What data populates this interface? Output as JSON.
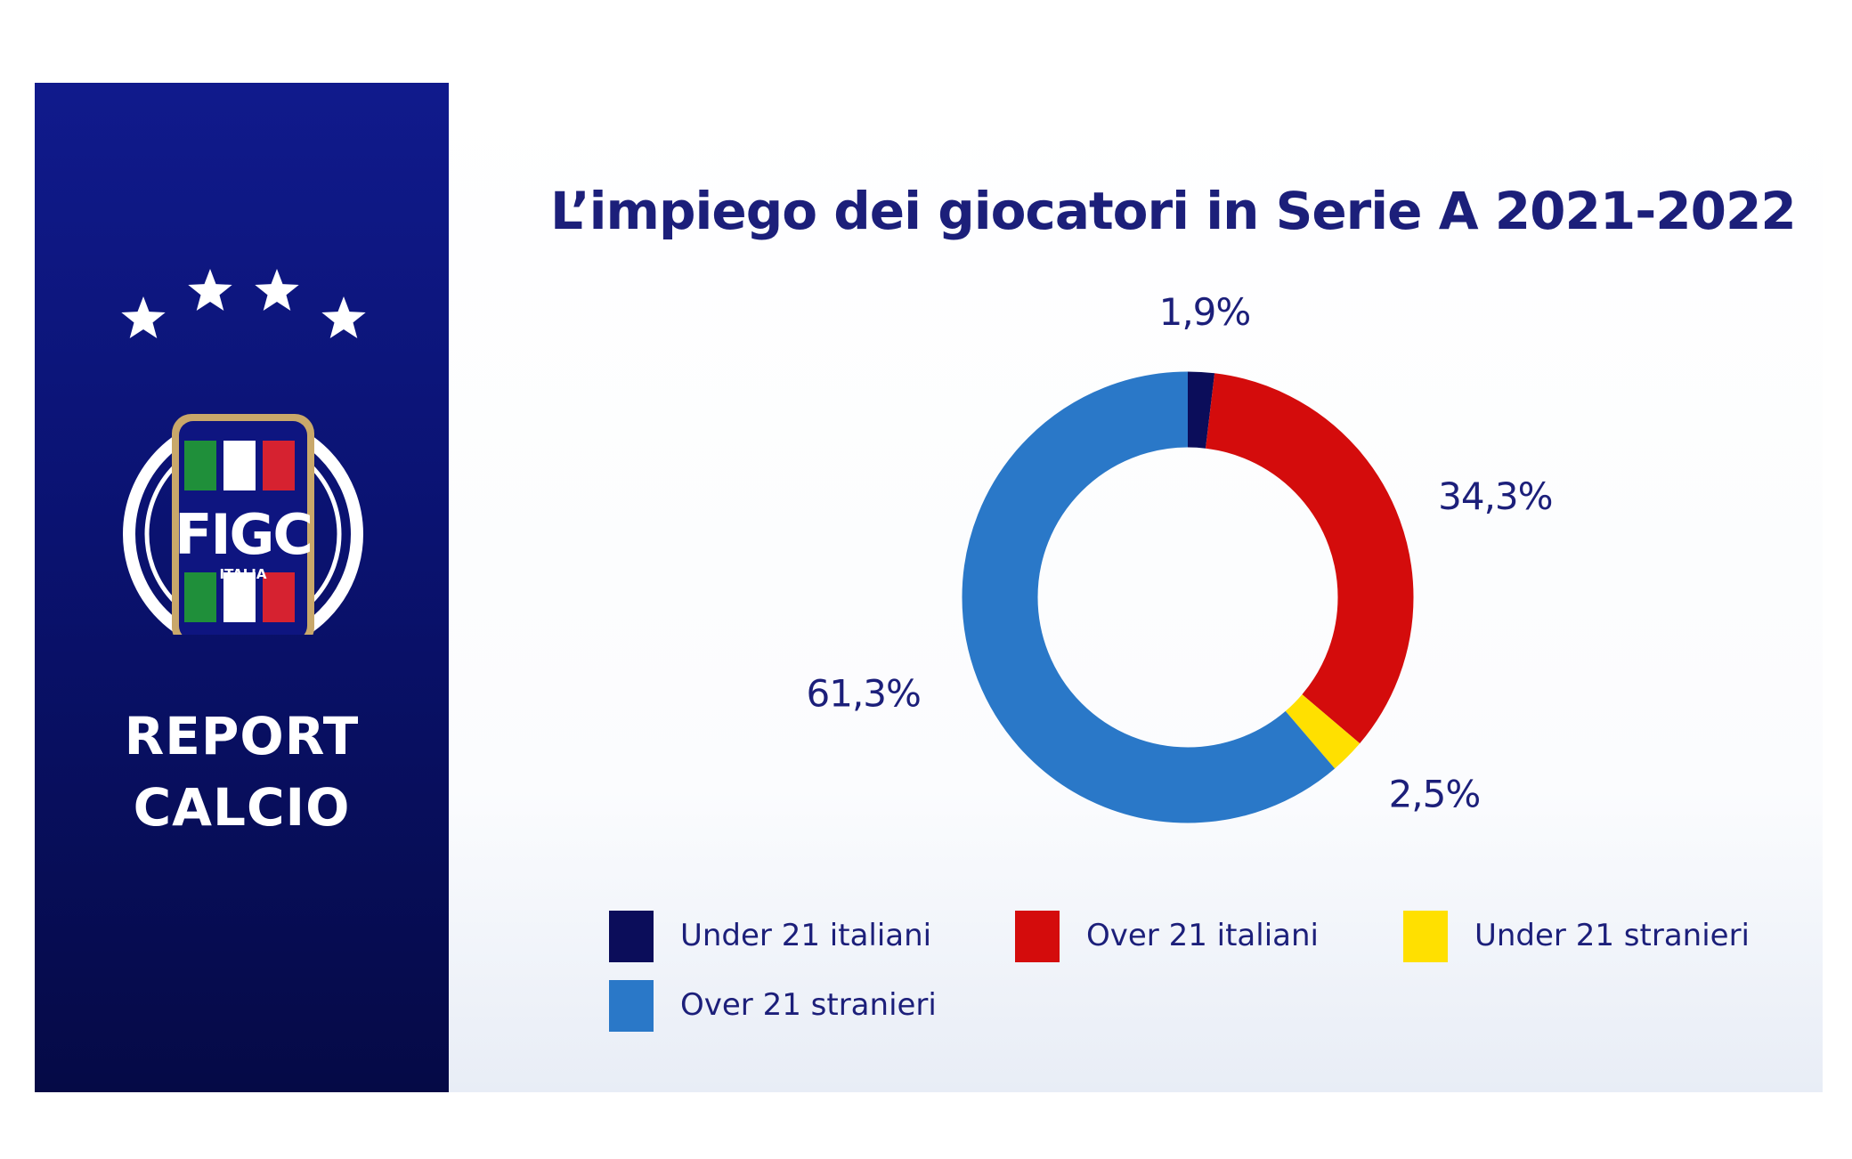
{
  "sidebar": {
    "report_line1": "REPORT",
    "report_line2": "CALCIO",
    "logo": {
      "text": "FIGC",
      "subtext": "ITALIA",
      "stars": 4,
      "colors": {
        "green": "#1f8f3a",
        "white": "#ffffff",
        "red": "#d62230",
        "gold": "#c9a86a"
      }
    }
  },
  "chart_data": {
    "type": "pie",
    "variant": "donut",
    "title": "L’impiego dei giocatori in Serie A 2021-2022",
    "unit": "%",
    "categories": [
      "Under 21 italiani",
      "Over 21 italiani",
      "Under 21 stranieri",
      "Over 21 stranieri"
    ],
    "values": [
      1.9,
      34.3,
      2.5,
      61.3
    ],
    "data_labels": [
      "1,9%",
      "34,3%",
      "2,5%",
      "61,3%"
    ],
    "colors": [
      "#0b0d5a",
      "#d40c0c",
      "#ffe000",
      "#2a78c8"
    ],
    "legend_position": "bottom"
  },
  "colors": {
    "text_primary": "#1c1f7a",
    "sidebar_top": "#101a8c",
    "sidebar_bottom": "#050a46"
  }
}
